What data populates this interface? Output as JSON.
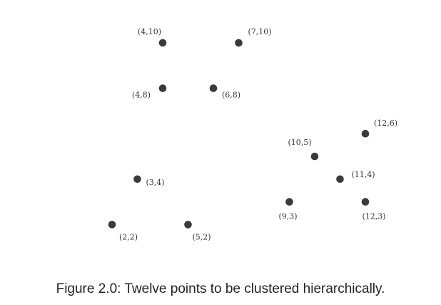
{
  "chart_data": {
    "type": "scatter",
    "title": "",
    "xlabel": "",
    "ylabel": "",
    "grid": false,
    "axes_visible": false,
    "marker_color": "#3a3a3a",
    "label_color": "#333333",
    "points": [
      {
        "x": 4,
        "y": 10,
        "label": "(4,10)"
      },
      {
        "x": 7,
        "y": 10,
        "label": "(7,10)"
      },
      {
        "x": 4,
        "y": 8,
        "label": "(4,8)"
      },
      {
        "x": 6,
        "y": 8,
        "label": "(6,8)"
      },
      {
        "x": 12,
        "y": 6,
        "label": "(12,6)"
      },
      {
        "x": 10,
        "y": 5,
        "label": "(10,5)"
      },
      {
        "x": 11,
        "y": 4,
        "label": "(11,4)"
      },
      {
        "x": 3,
        "y": 4,
        "label": "(3,4)"
      },
      {
        "x": 9,
        "y": 3,
        "label": "(9,3)"
      },
      {
        "x": 12,
        "y": 3,
        "label": "(12,3)"
      },
      {
        "x": 2,
        "y": 2,
        "label": "(2,2)"
      },
      {
        "x": 5,
        "y": 2,
        "label": "(5,2)"
      }
    ]
  },
  "caption": "Figure 2.0: Twelve points to be clustered hierarchically."
}
